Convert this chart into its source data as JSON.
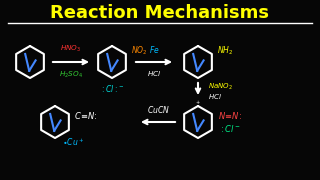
{
  "title": "Reaction Mechanisms",
  "title_color": "#FFFF00",
  "bg_color": "#060606",
  "underline_color": "#FFFFFF",
  "hno3_color": "#FF3333",
  "h2so4_color": "#33CC33",
  "fe_color": "#00BBFF",
  "hcl_color": "#FFFFFF",
  "no2_color": "#FF8800",
  "nh2_color": "#FFFF00",
  "nano2_color": "#FFFF00",
  "cl_color": "#00DDDD",
  "cn_color": "#FFFFFF",
  "cu_color": "#00BBFF",
  "cucn_color": "#FFFFFF",
  "ntn_color": "#FF4444",
  "cl2_color": "#00EE88",
  "arrow_color": "#FFFFFF",
  "plus_color": "#FFFFFF"
}
